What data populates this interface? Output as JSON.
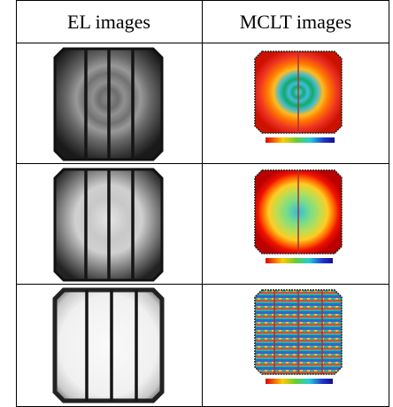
{
  "table": {
    "header": [
      "EL images",
      "MCLT images"
    ]
  }
}
